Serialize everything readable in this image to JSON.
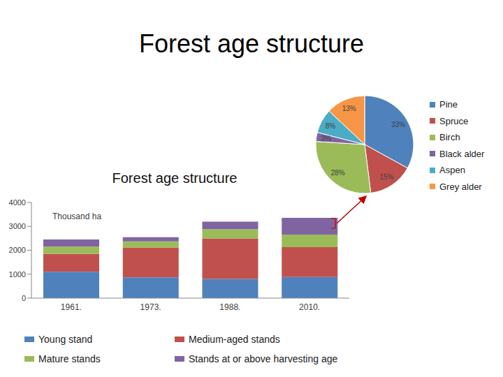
{
  "title": "Forest age structure",
  "chart_data": [
    {
      "type": "pie",
      "categories": [
        "Pine",
        "Spruce",
        "Birch",
        "Black alder",
        "Aspen",
        "Grey alder"
      ],
      "values": [
        33,
        15,
        28,
        3,
        8,
        13
      ],
      "value_labels": [
        "33%",
        "15%",
        "28%",
        "3%",
        "8%",
        "13%"
      ],
      "colors": [
        "#4f81bd",
        "#c0504d",
        "#9bbb59",
        "#8064a2",
        "#4bacc6",
        "#f79646"
      ],
      "data_labels": true,
      "legend": "right"
    },
    {
      "type": "bar",
      "title": "Forest age structure",
      "y_label": "Thousand ha",
      "categories": [
        "1961.",
        "1973.",
        "1988.",
        "2010."
      ],
      "series": [
        {
          "name": "Young stand",
          "color": "#4f81bd",
          "values": [
            1100,
            870,
            800,
            880
          ]
        },
        {
          "name": "Medium-aged stands",
          "color": "#c0504d",
          "values": [
            750,
            1250,
            1700,
            1250
          ]
        },
        {
          "name": "Mature stands",
          "color": "#9bbb59",
          "values": [
            300,
            250,
            380,
            530
          ]
        },
        {
          "name": "Stands at or above harvesting age",
          "color": "#8064a2",
          "values": [
            300,
            180,
            320,
            700
          ]
        }
      ],
      "stacked": true,
      "ylim": [
        0,
        4000
      ],
      "yticks": [
        0,
        1000,
        2000,
        3000,
        4000
      ],
      "grid": false,
      "legend": "bottom"
    }
  ]
}
